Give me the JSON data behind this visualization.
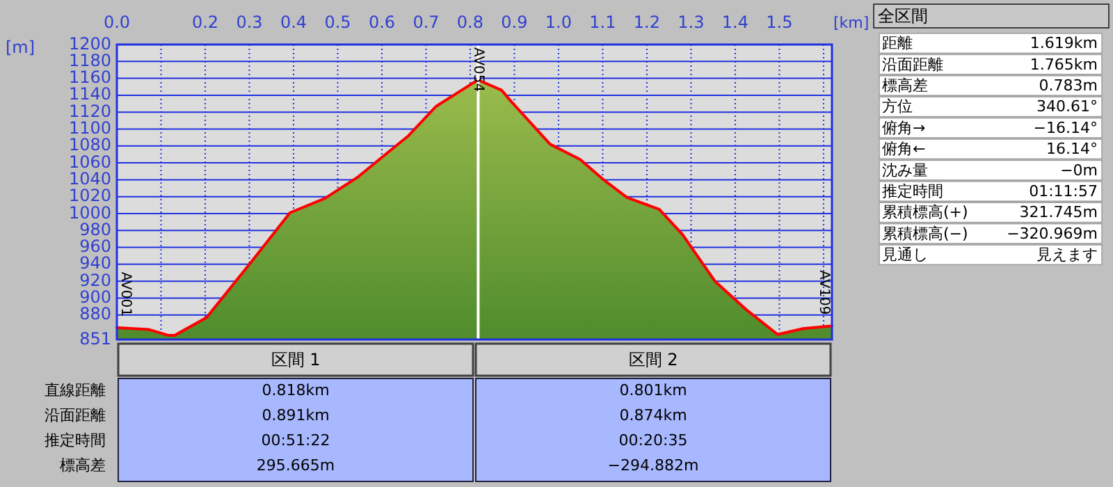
{
  "chart_data": [
    {
      "type": "area",
      "xlabel": "[km]",
      "ylabel": "[m]",
      "xlim": [
        0,
        1.619
      ],
      "ylim": [
        851,
        1200
      ],
      "xticks": [
        {
          "value": 0,
          "label": "0.0"
        },
        {
          "value": 0.1,
          "label": null
        },
        0.2,
        0.3,
        0.4,
        0.5,
        0.6,
        0.7,
        0.8,
        0.9,
        {
          "value": 1,
          "label": "1.0"
        },
        1.1,
        1.2,
        1.3,
        1.4,
        1.5,
        {
          "value": 1.6,
          "label": null
        }
      ],
      "yticks": [
        851,
        880,
        900,
        920,
        940,
        960,
        980,
        1000,
        1020,
        1040,
        1060,
        1080,
        1100,
        1120,
        1140,
        1160,
        1180,
        1200
      ],
      "grid": true,
      "series": [
        {
          "color": "#ff0000",
          "x": [
            0,
            0.071,
            0.116,
            0.131,
            0.203,
            0.303,
            0.392,
            0.471,
            0.545,
            0.608,
            0.66,
            0.723,
            0.808,
            0.818,
            0.871,
            0.892,
            0.981,
            1.049,
            1.102,
            1.155,
            1.228,
            1.281,
            1.354,
            1.428,
            1.496,
            1.554,
            1.619
          ],
          "values": [
            865,
            863,
            856,
            856,
            877,
            942,
            1001,
            1018,
            1043,
            1070,
            1092,
            1127,
            1155,
            1158,
            1146,
            1133,
            1082,
            1064,
            1040,
            1019,
            1005,
            975,
            920,
            885,
            857,
            864,
            867
          ]
        }
      ],
      "ref_lines": [
        {
          "axis": "x",
          "value": 0.818,
          "color": "#ffffff"
        }
      ],
      "annotations": [
        {
          "text": "AV001",
          "x": 0,
          "y": 865
        },
        {
          "text": "AV054",
          "x": 0.818,
          "y": 1158
        },
        {
          "text": "AV109",
          "x": 1.619,
          "y": 867
        }
      ]
    },
    {
      "type": "other",
      "title": "全区間",
      "categories": [
        "距離",
        "沿面距離",
        "標高差",
        "方位",
        "俯角→",
        "俯角←",
        "沈み量",
        "推定時間",
        "累積標高(+)",
        "累積標高(−)",
        "見通し"
      ],
      "value_labels": [
        "1.619km",
        "1.765km",
        "0.783m",
        "340.61°",
        "−16.14°",
        "16.14°",
        "−0m",
        "01:11:57",
        "321.745m",
        "−320.969m",
        "見えます"
      ]
    },
    {
      "type": "other",
      "title": "区間 1",
      "categories": [
        "直線距離",
        "沿面距離",
        "推定時間",
        "標高差"
      ],
      "value_labels": [
        "0.818km",
        "0.891km",
        "00:51:22",
        "295.665m"
      ]
    },
    {
      "type": "other",
      "title": "区間 2",
      "categories": [
        null,
        null,
        null,
        null
      ],
      "value_labels": [
        "0.801km",
        "0.874km",
        "00:20:35",
        "−294.882m"
      ]
    }
  ]
}
